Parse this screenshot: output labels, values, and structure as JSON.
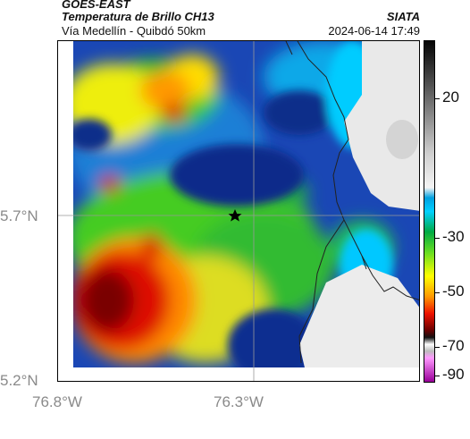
{
  "header": {
    "satellite": "GOES-EAST",
    "product": "Temperatura de Brillo CH13",
    "region": "Vía Medellín - Quibdó 50km",
    "brand": "SIATA",
    "datetime": "2024-06-14 17:49"
  },
  "axes": {
    "lat_labels": [
      "5.7°N",
      "5.2°N"
    ],
    "lon_labels": [
      "76.8°W",
      "76.3°W"
    ]
  },
  "colorbar": {
    "ticks": [
      "20",
      "-30",
      "-50",
      "-70",
      "-90"
    ]
  },
  "marker": {
    "type": "star",
    "icon": "star-icon"
  },
  "colors": {
    "very_cold": "#a60000",
    "cold": "#ff8800",
    "mid": "#ffee00",
    "warmish": "#44cc00",
    "cloud_edge": "#00d0ff",
    "deep_blue": "#0a2d8a",
    "clear_sky": "#eeeeee"
  }
}
